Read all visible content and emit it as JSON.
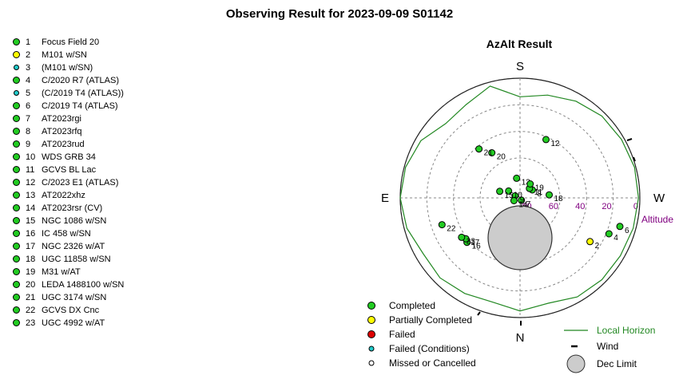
{
  "title": "Observing Result for 2023-09-09 S01142",
  "colors": {
    "completed": "#22cc22",
    "partially_completed": "#ffff00",
    "failed": "#dd0000",
    "failed_conditions": "#22cccc",
    "missed": "#ffffff",
    "horizon": "#228822",
    "altitude_label": "#800080",
    "dec_limit_fill": "#cccccc"
  },
  "targets": [
    {
      "num": "1",
      "name": "Focus Field 20",
      "status": "completed"
    },
    {
      "num": "2",
      "name": "M101 w/SN",
      "status": "partially_completed"
    },
    {
      "num": "3",
      "name": " (M101 w/SN)",
      "status": "failed_conditions"
    },
    {
      "num": "4",
      "name": "C/2020 R7 (ATLAS)",
      "status": "completed"
    },
    {
      "num": "5",
      "name": " (C/2019 T4 (ATLAS))",
      "status": "failed_conditions"
    },
    {
      "num": "6",
      "name": "C/2019 T4 (ATLAS)",
      "status": "completed"
    },
    {
      "num": "7",
      "name": "AT2023rgi",
      "status": "completed"
    },
    {
      "num": "8",
      "name": "AT2023rfq",
      "status": "completed"
    },
    {
      "num": "9",
      "name": "AT2023rud",
      "status": "completed"
    },
    {
      "num": "10",
      "name": "WDS GRB 34",
      "status": "completed"
    },
    {
      "num": "11",
      "name": "GCVS BL Lac",
      "status": "completed"
    },
    {
      "num": "12",
      "name": "C/2023 E1 (ATLAS)",
      "status": "completed"
    },
    {
      "num": "13",
      "name": "AT2022xhz",
      "status": "completed"
    },
    {
      "num": "14",
      "name": "AT2023rsr (CV)",
      "status": "completed"
    },
    {
      "num": "15",
      "name": "NGC 1086 w/SN",
      "status": "completed"
    },
    {
      "num": "16",
      "name": "IC 458 w/SN",
      "status": "completed"
    },
    {
      "num": "17",
      "name": "NGC 2326 w/AT",
      "status": "completed"
    },
    {
      "num": "18",
      "name": "UGC 11858 w/SN",
      "status": "completed"
    },
    {
      "num": "19",
      "name": "M31 w/AT",
      "status": "completed"
    },
    {
      "num": "20",
      "name": "LEDA 1488100 w/SN",
      "status": "completed"
    },
    {
      "num": "21",
      "name": "UGC 3174 w/SN",
      "status": "completed"
    },
    {
      "num": "22",
      "name": "GCVS DX Cnc",
      "status": "completed"
    },
    {
      "num": "23",
      "name": "UGC 4992 w/AT",
      "status": "completed"
    }
  ],
  "chart_data": {
    "type": "scatter",
    "title": "AzAlt Result",
    "projection": "polar az/alt, zenith at center, S at top, W at right",
    "directions": {
      "top": "S",
      "right": "W",
      "bottom": "N",
      "left": "E"
    },
    "altitude_axis_label": "Altitude",
    "altitude_ticks": [
      80,
      60,
      40,
      20,
      0
    ],
    "points": [
      {
        "label": "2",
        "status": "partially_completed",
        "az": 122,
        "alt": 28
      },
      {
        "label": "4",
        "status": "completed",
        "az": 112,
        "alt": 18
      },
      {
        "label": "6",
        "status": "completed",
        "az": 106,
        "alt": 12
      },
      {
        "label": "7",
        "status": "completed",
        "az": 150,
        "alt": 88
      },
      {
        "label": "8",
        "status": "completed",
        "az": 57,
        "alt": 79
      },
      {
        "label": "9",
        "status": "completed",
        "az": 292,
        "alt": 86
      },
      {
        "label": "10",
        "status": "completed",
        "az": 301,
        "alt": 80
      },
      {
        "label": "11",
        "status": "completed",
        "az": 45,
        "alt": 80
      },
      {
        "label": "12",
        "status": "completed",
        "az": 24,
        "alt": 42
      },
      {
        "label": "13",
        "status": "completed",
        "az": 350,
        "alt": 75
      },
      {
        "label": "14",
        "status": "completed",
        "az": 245,
        "alt": 85
      },
      {
        "label": "15",
        "status": "completed",
        "az": 288,
        "alt": 74
      },
      {
        "label": "16",
        "status": "completed",
        "az": 230,
        "alt": 38
      },
      {
        "label": "17",
        "status": "completed",
        "az": 233,
        "alt": 39
      },
      {
        "label": "18",
        "status": "completed",
        "az": 84,
        "alt": 68
      },
      {
        "label": "19",
        "status": "completed",
        "az": 36,
        "alt": 77
      },
      {
        "label": "20",
        "status": "completed",
        "az": 328,
        "alt": 50
      },
      {
        "label": "21",
        "status": "completed",
        "az": 320,
        "alt": 42
      },
      {
        "label": "22",
        "status": "completed",
        "az": 251,
        "alt": 28
      },
      {
        "label": "23",
        "status": "completed",
        "az": 236,
        "alt": 37
      }
    ],
    "dec_limit": {
      "az": 180,
      "alt": 60,
      "radius_deg": 24
    },
    "horizon": {
      "az": [
        0,
        15,
        30,
        45,
        60,
        75,
        90,
        105,
        120,
        135,
        150,
        165,
        180,
        195,
        210,
        225,
        240,
        255,
        270,
        285,
        300,
        315,
        330,
        345,
        360
      ],
      "alt": [
        14,
        10,
        6,
        3,
        2,
        1,
        1,
        2,
        3,
        3,
        4,
        8,
        5,
        9,
        7,
        5,
        6,
        2,
        0,
        1,
        4,
        11,
        9,
        3,
        14
      ]
    },
    "legend": [
      {
        "label": "Completed",
        "status": "completed"
      },
      {
        "label": "Partially Completed",
        "status": "partially_completed"
      },
      {
        "label": "Failed",
        "status": "failed"
      },
      {
        "label": "Failed (Conditions)",
        "status": "failed_conditions"
      },
      {
        "label": "Missed or Cancelled",
        "status": "missed"
      },
      {
        "label": "Local Horizon",
        "status": "horizon"
      },
      {
        "label": "Wind",
        "status": "wind"
      },
      {
        "label": "Dec Limit",
        "status": "dec_limit"
      }
    ],
    "grid": true
  }
}
